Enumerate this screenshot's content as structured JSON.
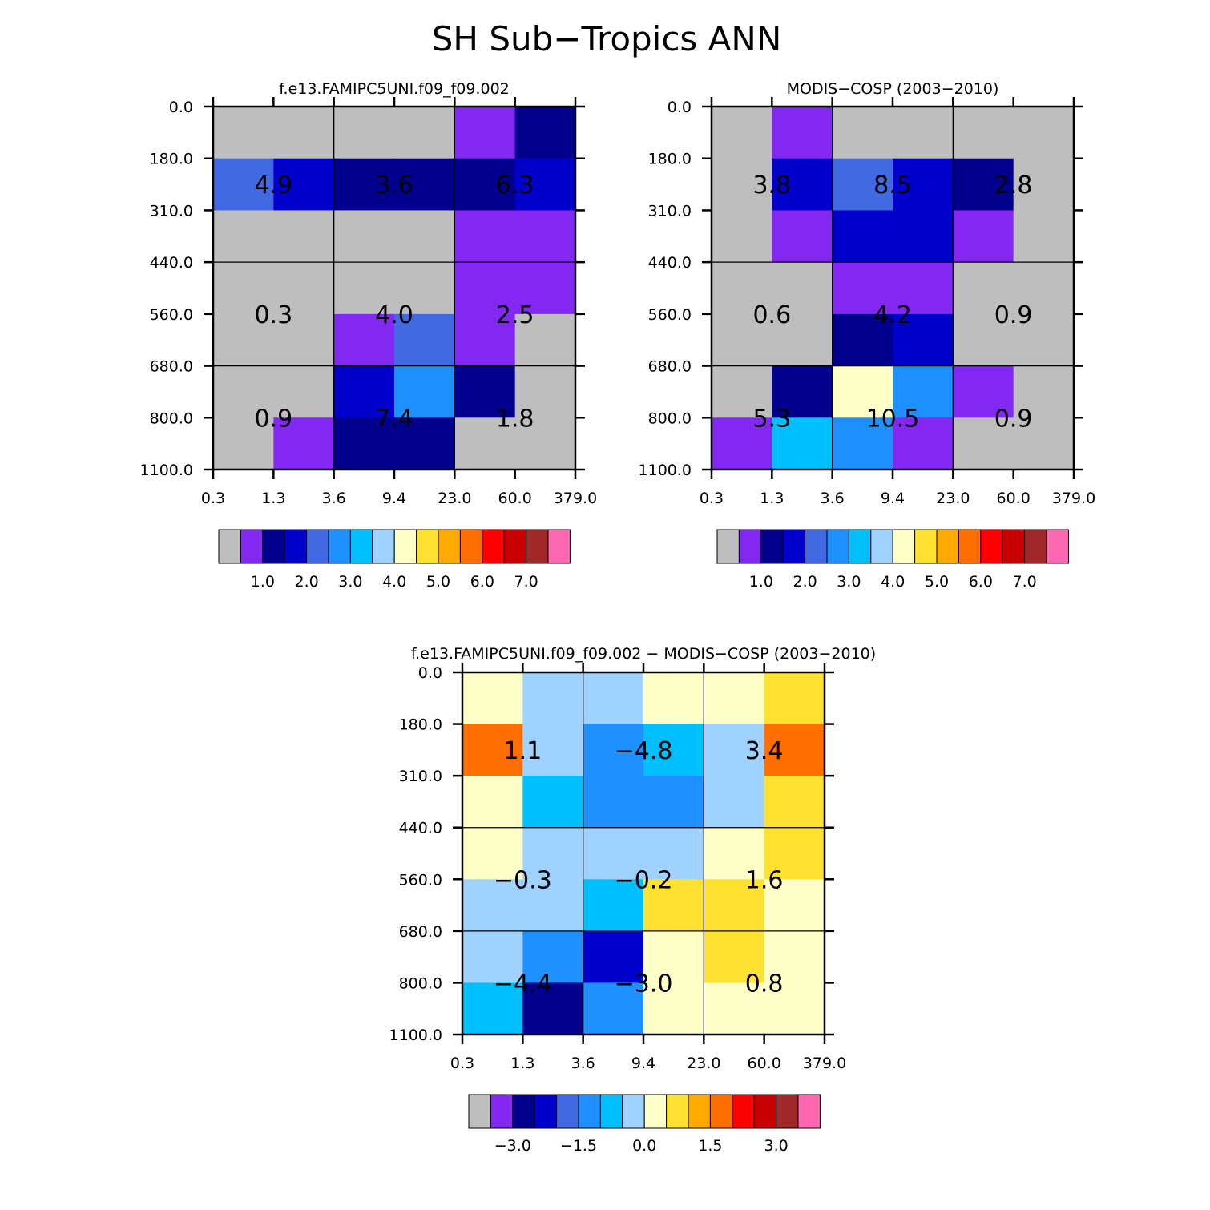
{
  "title": "SH Sub−Tropics ANN",
  "palette": [
    "#BEBEBE",
    "#8228F0",
    "#00008C",
    "#0000CD",
    "#4169E1",
    "#1E90FF",
    "#00BFFF",
    "#A0D2FF",
    "#FFFFC8",
    "#FFE132",
    "#FFAA00",
    "#FF6E00",
    "#FF0000",
    "#C80000",
    "#A02828",
    "#FF69B4"
  ],
  "chart_data": [
    {
      "type": "heatmap",
      "title": "f.e13.FAMIPC5UNI.f09_f09.002",
      "x_tick_labels": [
        "0.3",
        "1.3",
        "3.6",
        "9.4",
        "23.0",
        "60.0",
        "379.0"
      ],
      "y_tick_labels": [
        "0.0",
        "180.0",
        "310.0",
        "440.0",
        "560.0",
        "680.0",
        "800.0",
        "1100.0"
      ],
      "cells": [
        [
          0,
          0,
          0,
          0,
          1,
          2
        ],
        [
          4,
          3,
          2,
          2,
          2,
          3
        ],
        [
          0,
          0,
          0,
          0,
          1,
          1
        ],
        [
          0,
          0,
          0,
          0,
          1,
          1
        ],
        [
          0,
          0,
          1,
          4,
          1,
          0
        ],
        [
          0,
          0,
          3,
          5,
          2,
          0
        ],
        [
          0,
          1,
          2,
          2,
          0,
          0
        ]
      ],
      "box_values": [
        "4.9",
        "3.6",
        "6.3",
        "0.3",
        "4.0",
        "2.5",
        "0.9",
        "7.4",
        "1.8"
      ],
      "colorbar_labels": [
        "1.0",
        "2.0",
        "3.0",
        "4.0",
        "5.0",
        "6.0",
        "7.0"
      ]
    },
    {
      "type": "heatmap",
      "title": "MODIS−COSP (2003−2010)",
      "x_tick_labels": [
        "0.3",
        "1.3",
        "3.6",
        "9.4",
        "23.0",
        "60.0",
        "379.0"
      ],
      "y_tick_labels": [
        "0.0",
        "180.0",
        "310.0",
        "440.0",
        "560.0",
        "680.0",
        "800.0",
        "1100.0"
      ],
      "cells": [
        [
          0,
          1,
          0,
          0,
          0,
          0
        ],
        [
          0,
          3,
          4,
          3,
          2,
          0
        ],
        [
          0,
          1,
          3,
          3,
          1,
          0
        ],
        [
          0,
          0,
          1,
          1,
          0,
          0
        ],
        [
          0,
          0,
          2,
          3,
          0,
          0
        ],
        [
          0,
          2,
          8,
          5,
          1,
          0
        ],
        [
          1,
          6,
          5,
          1,
          0,
          0
        ]
      ],
      "box_values": [
        "3.8",
        "8.5",
        "2.8",
        "0.6",
        "4.2",
        "0.9",
        "5.3",
        "10.5",
        "0.9"
      ],
      "colorbar_labels": [
        "1.0",
        "2.0",
        "3.0",
        "4.0",
        "5.0",
        "6.0",
        "7.0"
      ]
    },
    {
      "type": "heatmap",
      "title": "f.e13.FAMIPC5UNI.f09_f09.002 − MODIS−COSP (2003−2010)",
      "x_tick_labels": [
        "0.3",
        "1.3",
        "3.6",
        "9.4",
        "23.0",
        "60.0",
        "379.0"
      ],
      "y_tick_labels": [
        "0.0",
        "180.0",
        "310.0",
        "440.0",
        "560.0",
        "680.0",
        "800.0",
        "1100.0"
      ],
      "cells": [
        [
          8,
          7,
          7,
          8,
          8,
          9
        ],
        [
          11,
          7,
          5,
          6,
          7,
          11
        ],
        [
          8,
          6,
          5,
          5,
          7,
          9
        ],
        [
          8,
          7,
          7,
          7,
          8,
          9
        ],
        [
          7,
          7,
          6,
          9,
          9,
          8
        ],
        [
          7,
          5,
          3,
          8,
          9,
          8
        ],
        [
          6,
          2,
          5,
          8,
          8,
          8
        ]
      ],
      "box_values": [
        "1.1",
        "−4.8",
        "3.4",
        "−0.3",
        "−0.2",
        "1.6",
        "−4.4",
        "−3.0",
        "0.8"
      ],
      "colorbar_labels": [
        "−3.0",
        "−1.5",
        "0.0",
        "1.5",
        "3.0"
      ]
    }
  ]
}
